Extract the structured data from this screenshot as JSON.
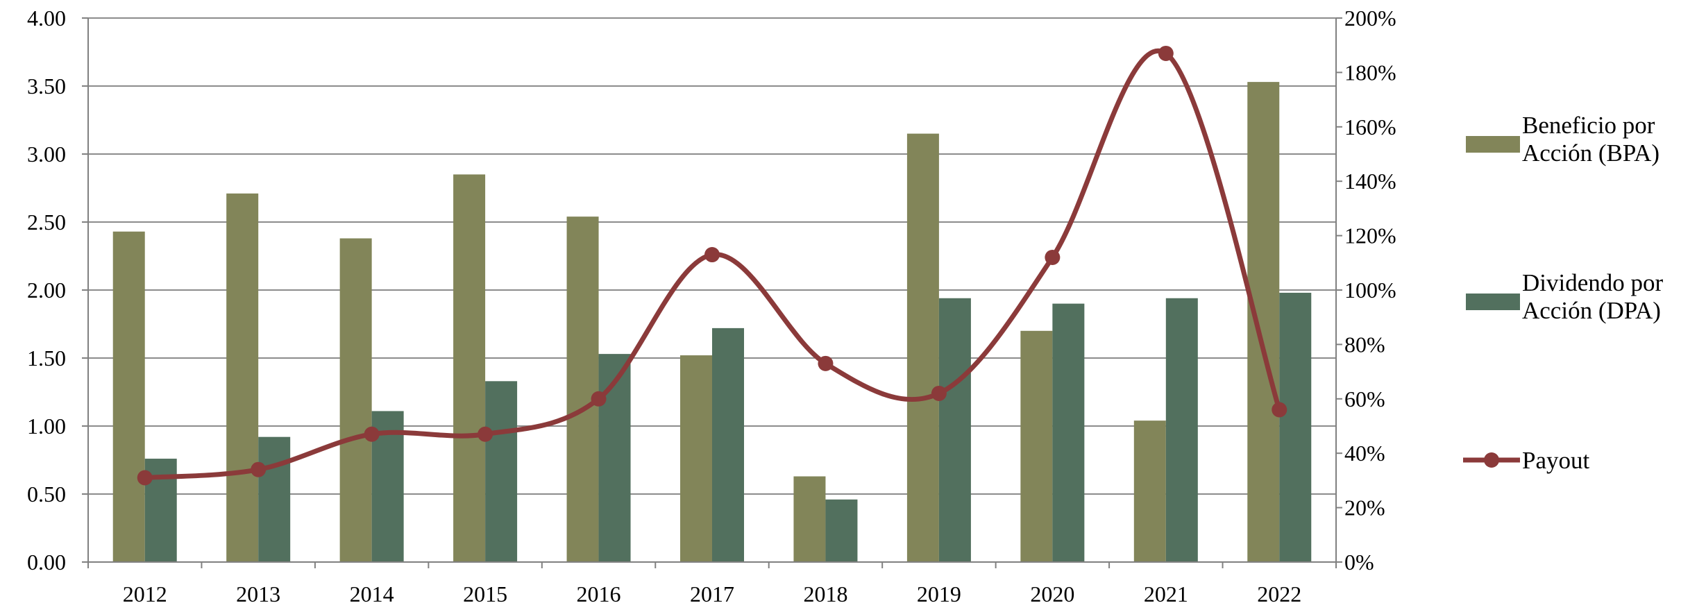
{
  "chart_data": {
    "type": "bar",
    "categories": [
      "2012",
      "2013",
      "2014",
      "2015",
      "2016",
      "2017",
      "2018",
      "2019",
      "2020",
      "2021",
      "2022"
    ],
    "series": [
      {
        "name": "Beneficio por Acción (BPA)",
        "name_lines": [
          "Beneficio por",
          "Acción (BPA)"
        ],
        "type": "bar",
        "axis": "left",
        "color": "#828559",
        "values": [
          2.43,
          2.71,
          2.38,
          2.85,
          2.54,
          1.52,
          0.63,
          3.15,
          1.7,
          1.04,
          3.53
        ]
      },
      {
        "name": "Dividendo por Acción (DPA)",
        "name_lines": [
          "Dividendo por",
          "Acción (DPA)"
        ],
        "type": "bar",
        "axis": "left",
        "color": "#52705e",
        "values": [
          0.76,
          0.92,
          1.11,
          1.33,
          1.53,
          1.72,
          0.46,
          1.94,
          1.9,
          1.94,
          1.98
        ]
      },
      {
        "name": "Payout",
        "name_lines": [
          "Payout"
        ],
        "type": "line",
        "axis": "right",
        "color": "#8b3a3a",
        "values": [
          31,
          34,
          47,
          47,
          60,
          113,
          73,
          62,
          112,
          187,
          56
        ]
      }
    ],
    "yaxis_left": {
      "range": [
        0,
        4
      ],
      "ticks": [
        0,
        0.5,
        1,
        1.5,
        2,
        2.5,
        3,
        3.5,
        4
      ],
      "tick_labels": [
        "0.00",
        "0.50",
        "1.00",
        "1.50",
        "2.00",
        "2.50",
        "3.00",
        "3.50",
        "4.00"
      ]
    },
    "yaxis_right": {
      "range": [
        0,
        200
      ],
      "ticks": [
        0,
        20,
        40,
        60,
        80,
        100,
        120,
        140,
        160,
        180,
        200
      ],
      "tick_labels": [
        "0%",
        "20%",
        "40%",
        "60%",
        "80%",
        "100%",
        "120%",
        "140%",
        "160%",
        "180%",
        "200%"
      ]
    },
    "grid": true,
    "legend_position": "right",
    "title": "",
    "xlabel": "",
    "ylabel": ""
  }
}
